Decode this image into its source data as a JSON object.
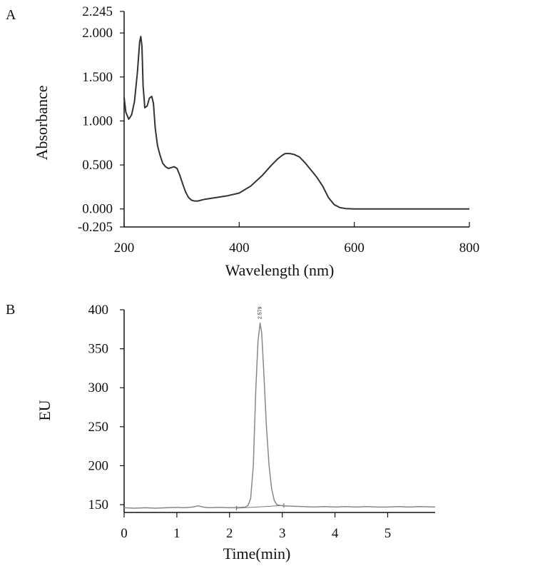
{
  "chart_data": [
    {
      "panel_label": "A",
      "type": "line",
      "xlabel": "Wavelength (nm)",
      "ylabel": "Absorbance",
      "xlim": [
        200,
        800
      ],
      "ylim": [
        -0.205,
        2.245
      ],
      "x_ticks": [
        200,
        400,
        600,
        800
      ],
      "x_tick_labels": [
        "200",
        "400",
        "600",
        "800"
      ],
      "y_ticks": [
        -0.205,
        0.0,
        0.5,
        1.0,
        1.5,
        2.0,
        2.245
      ],
      "y_tick_labels": [
        "-0.205",
        "0.000",
        "0.500",
        "1.000",
        "1.500",
        "2.000",
        "2.245"
      ],
      "grid": false,
      "line_color": "#333333",
      "series": [
        {
          "name": "Absorbance spectrum",
          "x": [
            200,
            203,
            208,
            213,
            218,
            223,
            227,
            229,
            231,
            233,
            236,
            240,
            244,
            248,
            251,
            254,
            258,
            262,
            267,
            272,
            277,
            282,
            287,
            292,
            297,
            302,
            307,
            312,
            317,
            322,
            328,
            340,
            360,
            380,
            400,
            420,
            440,
            455,
            467,
            475,
            480,
            488,
            495,
            505,
            515,
            525,
            535,
            545,
            555,
            565,
            575,
            585,
            600,
            650,
            700,
            750,
            800
          ],
          "y": [
            1.27,
            1.1,
            1.02,
            1.07,
            1.22,
            1.55,
            1.9,
            1.96,
            1.85,
            1.4,
            1.15,
            1.17,
            1.26,
            1.28,
            1.2,
            0.92,
            0.72,
            0.62,
            0.52,
            0.48,
            0.46,
            0.47,
            0.48,
            0.46,
            0.38,
            0.28,
            0.19,
            0.13,
            0.1,
            0.09,
            0.09,
            0.11,
            0.13,
            0.15,
            0.18,
            0.26,
            0.38,
            0.49,
            0.57,
            0.61,
            0.63,
            0.63,
            0.62,
            0.59,
            0.52,
            0.44,
            0.36,
            0.26,
            0.13,
            0.05,
            0.015,
            0.004,
            0.0,
            0.0,
            0.0,
            0.0,
            0.0
          ]
        }
      ]
    },
    {
      "panel_label": "B",
      "type": "line",
      "xlabel": "Time(min)",
      "ylabel": "EU",
      "xlim": [
        0,
        5.9
      ],
      "ylim": [
        140,
        400
      ],
      "x_ticks": [
        0,
        1,
        2,
        3,
        4,
        5
      ],
      "x_tick_labels": [
        "0",
        "1",
        "2",
        "3",
        "4",
        "5"
      ],
      "y_ticks": [
        150,
        200,
        250,
        300,
        350,
        400
      ],
      "y_tick_labels": [
        "150",
        "200",
        "250",
        "300",
        "350",
        "400"
      ],
      "grid": false,
      "line_color": "#888888",
      "peak_annotation": {
        "label": "2.579",
        "x": 2.579,
        "y": 388
      },
      "baseline_segment": {
        "x": [
          2.13,
          3.03
        ],
        "y": [
          145.5,
          149
        ]
      },
      "series": [
        {
          "name": "Chromatogram",
          "x": [
            0,
            0.2,
            0.4,
            0.6,
            0.8,
            1.0,
            1.15,
            1.3,
            1.4,
            1.5,
            1.6,
            1.8,
            2.0,
            2.2,
            2.3,
            2.35,
            2.4,
            2.45,
            2.5,
            2.54,
            2.579,
            2.61,
            2.65,
            2.7,
            2.75,
            2.8,
            2.85,
            2.9,
            3.0,
            3.2,
            3.4,
            3.6,
            3.8,
            4.0,
            4.2,
            4.4,
            4.6,
            4.8,
            5.0,
            5.2,
            5.4,
            5.6,
            5.9
          ],
          "y": [
            146,
            145.5,
            146,
            145.5,
            146,
            146.5,
            146,
            147,
            148.5,
            147,
            146,
            146.5,
            146,
            146.5,
            147,
            149,
            158,
            200,
            300,
            360,
            383,
            370,
            320,
            250,
            200,
            170,
            155,
            150,
            148.5,
            148,
            147.5,
            147,
            147.5,
            147,
            147.5,
            147,
            147.5,
            147,
            147,
            147.5,
            147,
            147.5,
            147
          ]
        }
      ]
    }
  ]
}
